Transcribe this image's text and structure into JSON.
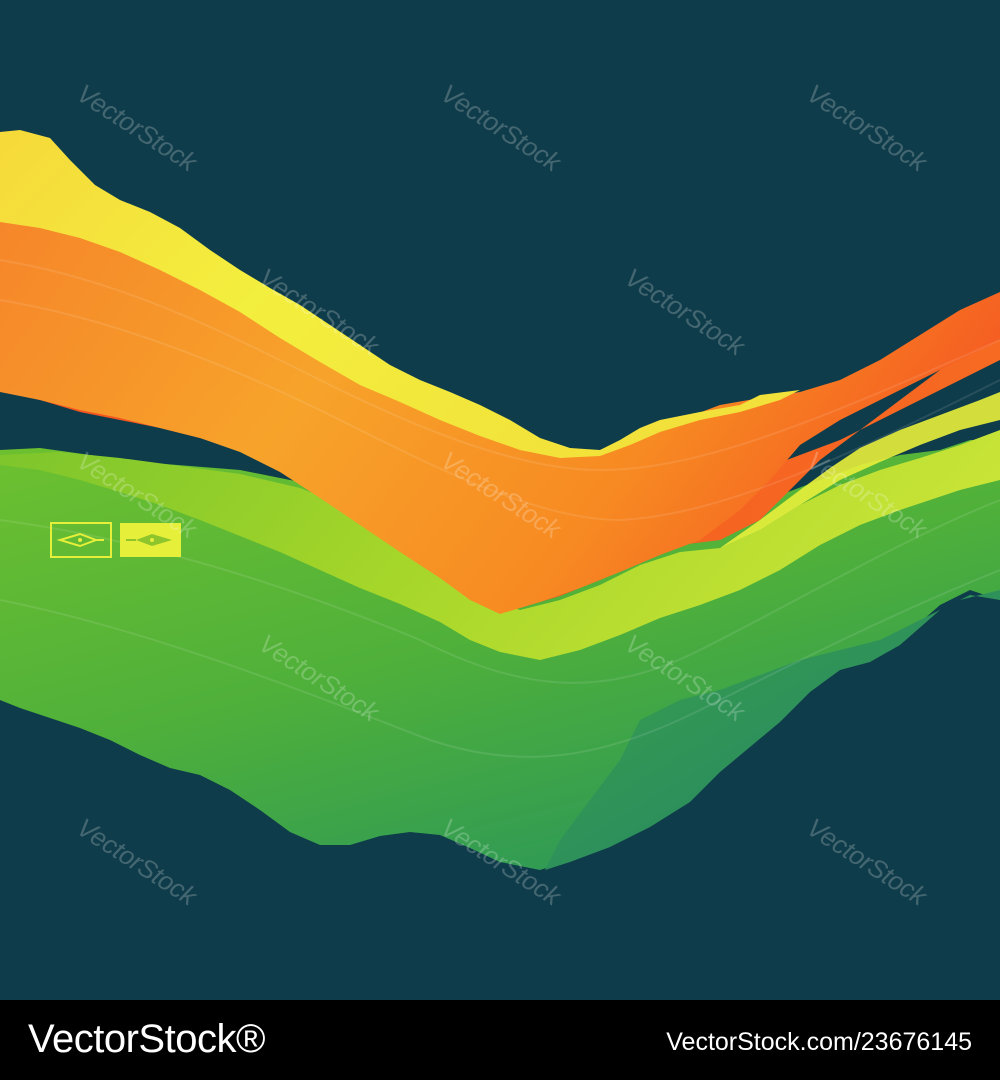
{
  "image": {
    "subject": "abstract 3D mountain landscape waves",
    "colors": {
      "background": "#0f3c4a",
      "ridge_yellow": "#f1ea3c",
      "ridge_orange": "#f7811e",
      "ridge_red_orange": "#f55a22",
      "ridge_lime": "#8fcf2a",
      "ridge_green": "#52b33a",
      "ridge_teal": "#2a8a6a",
      "badge": "#e6ef3a",
      "footer": "#000000"
    }
  },
  "badge": {
    "icons": [
      "pen-nib-left-icon",
      "pen-nib-right-icon"
    ]
  },
  "watermark": {
    "text": "VectorStock"
  },
  "footer": {
    "brand": "VectorStock®",
    "image_id": "VectorStock.com/23676145"
  }
}
